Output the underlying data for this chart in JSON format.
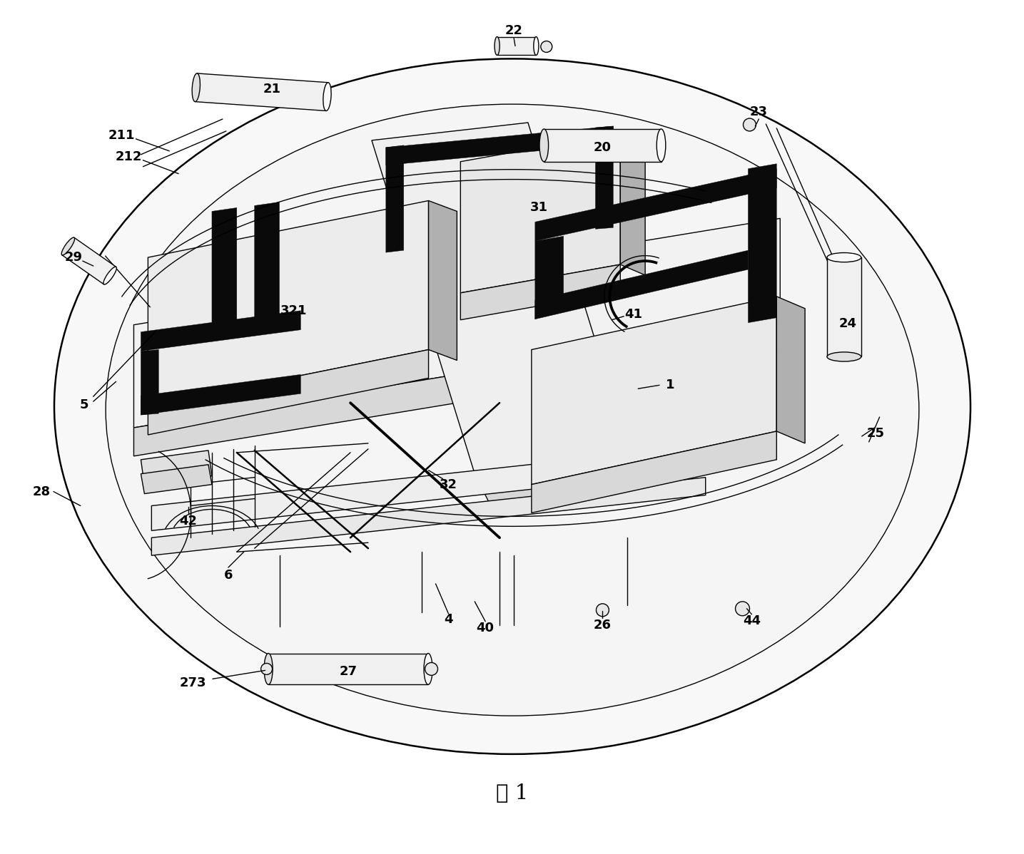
{
  "title": "图 1",
  "bg": "#ffffff",
  "black": "#000000",
  "gray_light": "#f0f0f0",
  "gray_mid": "#d8d8d8",
  "gray_dark": "#b0b0b0",
  "lw_thin": 1.0,
  "lw_med": 1.8,
  "lw_thick": 5.0
}
